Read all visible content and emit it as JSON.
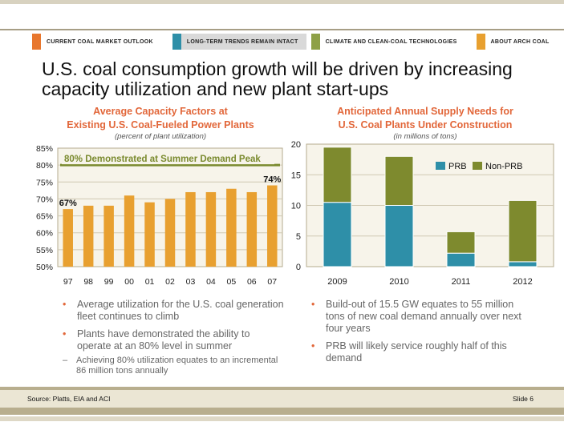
{
  "nav": {
    "tabs": [
      {
        "label": "CURRENT COAL MARKET OUTLOOK",
        "color": "#e8772e",
        "active": false
      },
      {
        "label": "LONG-TERM TRENDS REMAIN INTACT",
        "color": "#2e8fa8",
        "active": true
      },
      {
        "label": "CLIMATE AND CLEAN-COAL TECHNOLOGIES",
        "color": "#8ea046",
        "active": false
      },
      {
        "label": "ABOUT ARCH COAL",
        "color": "#e8a030",
        "active": false
      }
    ]
  },
  "headline": "U.S. coal consumption growth will be driven by increasing capacity utilization and new plant start-ups",
  "left_chart": {
    "title_line1": "Average Capacity Factors at",
    "title_line2": "Existing U.S. Coal-Fueled Power Plants",
    "subtitle": "(percent of plant utilization)"
  },
  "right_chart": {
    "title_line1": "Anticipated Annual Supply Needs for",
    "title_line2": "U.S. Coal Plants Under Construction",
    "subtitle": "(in millions of tons)"
  },
  "chart_data": [
    {
      "type": "bar",
      "categories": [
        "97",
        "98",
        "99",
        "00",
        "01",
        "02",
        "03",
        "04",
        "05",
        "06",
        "07"
      ],
      "values": [
        67,
        68,
        68,
        71,
        69,
        70,
        72,
        72,
        73,
        72,
        74
      ],
      "ylim": [
        50,
        85
      ],
      "yticks": [
        "50%",
        "55%",
        "60%",
        "65%",
        "70%",
        "75%",
        "80%",
        "85%"
      ],
      "reference_line": {
        "value": 80,
        "label": "80% Demonstrated at Summer Demand Peak",
        "color": "#7a8a2e"
      },
      "data_labels": [
        {
          "index": 0,
          "text": "67%"
        },
        {
          "index": 10,
          "text": "74%"
        }
      ],
      "bar_color": "#e8a030",
      "grid": true
    },
    {
      "type": "bar",
      "stacked": true,
      "categories": [
        "2009",
        "2010",
        "2011",
        "2012"
      ],
      "series": [
        {
          "name": "PRB",
          "values": [
            10.5,
            10,
            2.2,
            0.8
          ],
          "color": "#2e8fa8"
        },
        {
          "name": "Non-PRB",
          "values": [
            9,
            8,
            3.5,
            10
          ],
          "color": "#7e8a2e"
        }
      ],
      "ylim": [
        0,
        20
      ],
      "yticks": [
        "0",
        "5",
        "10",
        "15",
        "20"
      ],
      "legend": "top-right",
      "grid": true
    }
  ],
  "left_bullets": {
    "b1": "Average utilization for the U.S. coal generation fleet continues to climb",
    "b2": "Plants have demonstrated the ability to operate at an 80% level in summer",
    "sub": "Achieving 80% utilization equates to an incremental 86 million tons annually"
  },
  "right_bullets": {
    "b1": "Build-out of 15.5 GW equates to 55 million tons of new coal demand annually over next four years",
    "b2": "PRB will likely service roughly half of this demand"
  },
  "footer": {
    "source": "Source: Platts, EIA and ACI",
    "slide": "Slide 6"
  },
  "glyphs": {
    "bullet": "•",
    "dash": "–"
  }
}
